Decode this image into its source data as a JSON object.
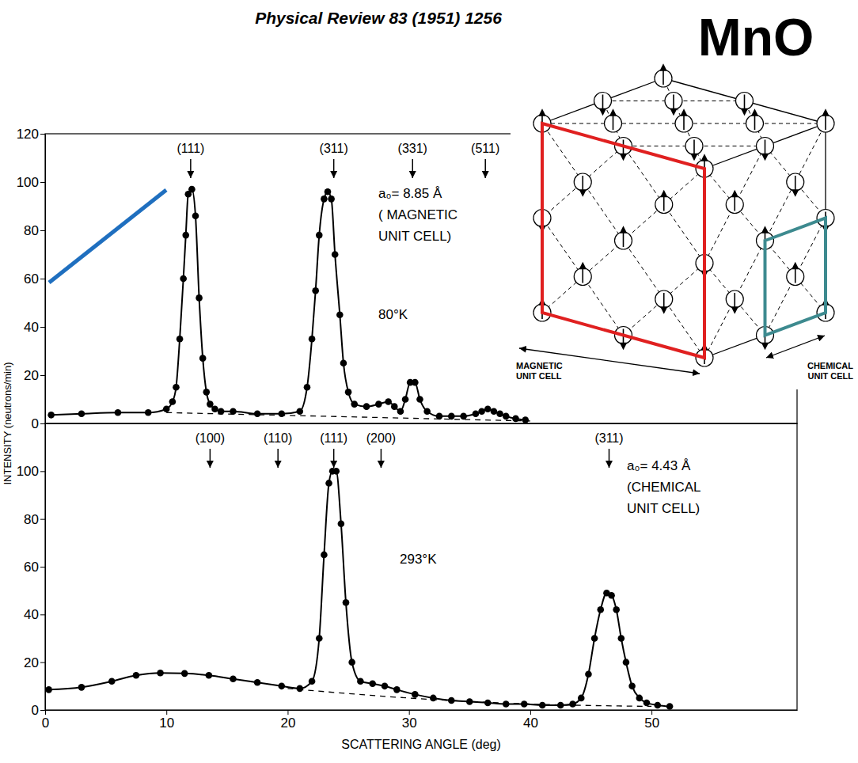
{
  "header": {
    "citation": "Physical Review 83 (1951) 1256",
    "compound": "MnO"
  },
  "chart_data": [
    {
      "type": "line",
      "y_label": "INTENSITY (neutrons/min)",
      "temperature": "80°K",
      "note_lines": [
        "a₀= 8.85 Å",
        "( MAGNETIC",
        "UNIT CELL)"
      ],
      "peaks": [
        {
          "label": "(111)",
          "x": 12
        },
        {
          "label": "(311)",
          "x": 23.8
        },
        {
          "label": "(331)",
          "x": 30.3
        },
        {
          "label": "(511)",
          "x": 36.3
        }
      ],
      "xlim": [
        0,
        62
      ],
      "ylim": [
        0,
        120
      ],
      "yticks": [
        0,
        20,
        40,
        60,
        80,
        100,
        120
      ],
      "tick_labels": "y",
      "series": [
        {
          "color": "#000000",
          "marker": "circle",
          "line_style": "solid",
          "x": [
            0.5,
            3,
            6,
            8.5,
            10,
            10.5,
            10.8,
            11.1,
            11.4,
            11.6,
            11.8,
            12.1,
            12.4,
            12.7,
            13,
            13.3,
            13.6,
            14,
            14.5,
            15.5,
            17.5,
            19.5,
            21,
            21.6,
            22,
            22.3,
            22.6,
            23,
            23.3,
            23.6,
            23.9,
            24.3,
            24.6,
            25,
            25.5,
            26.5,
            27.5,
            28.3,
            28.8,
            29.3,
            29.7,
            30.1,
            30.5,
            30.9,
            31.5,
            32.5,
            33.5,
            34.5,
            35.5,
            36,
            36.5,
            37,
            37.5,
            38,
            38.8,
            39.6
          ],
          "values": [
            3.5,
            4,
            4.5,
            4.5,
            6,
            9,
            15,
            35,
            60,
            78,
            95,
            97,
            86,
            52,
            27,
            13,
            8,
            6,
            5,
            5,
            4,
            4,
            5,
            15,
            35,
            55,
            78,
            93,
            96,
            93,
            70,
            45,
            25,
            13,
            8,
            7,
            8,
            9,
            7,
            5,
            10,
            17,
            17,
            10,
            5,
            3,
            3,
            3,
            4,
            5,
            6,
            5,
            4,
            3,
            2,
            1.5
          ]
        },
        {
          "color": "#000000",
          "marker": "none",
          "line_style": "dashed",
          "x": [
            10,
            40
          ],
          "values": [
            4.5,
            1
          ]
        }
      ]
    },
    {
      "type": "line",
      "x_label": "SCATTERING ANGLE (deg)",
      "temperature": "293°K",
      "note_lines": [
        "a₀= 4.43 Å",
        "(CHEMICAL",
        "UNIT CELL)"
      ],
      "peaks": [
        {
          "label": "(100)",
          "x": 13.6
        },
        {
          "label": "(110)",
          "x": 19.2
        },
        {
          "label": "(111)",
          "x": 23.8
        },
        {
          "label": "(200)",
          "x": 27.7
        },
        {
          "label": "(311)",
          "x": 46.5
        }
      ],
      "xlim": [
        0,
        62
      ],
      "ylim": [
        0,
        120
      ],
      "xticks": [
        0,
        10,
        20,
        30,
        40,
        50
      ],
      "yticks": [
        0,
        20,
        40,
        60,
        80,
        100
      ],
      "series": [
        {
          "color": "#000000",
          "marker": "circle",
          "line_style": "solid",
          "x": [
            0.3,
            3,
            5.5,
            7.5,
            9.5,
            11.5,
            13.5,
            15.5,
            17.5,
            19.5,
            21,
            22,
            22.6,
            23,
            23.4,
            23.7,
            24,
            24.4,
            24.8,
            25.3,
            26,
            27,
            28,
            29,
            30.5,
            32,
            33.5,
            35,
            36.5,
            38,
            39.5,
            41,
            42.5,
            43.5,
            44.2,
            44.8,
            45.3,
            45.8,
            46.3,
            46.7,
            47.1,
            47.5,
            47.9,
            48.4,
            49,
            49.6,
            50.5,
            51.5
          ],
          "values": [
            8.5,
            9.5,
            12,
            14.5,
            15.5,
            15.3,
            14.5,
            13,
            11.5,
            10,
            9,
            12,
            30,
            65,
            95,
            100,
            100,
            78,
            45,
            20,
            12,
            11,
            10,
            8.5,
            6.5,
            5,
            4,
            3.5,
            3,
            2.5,
            2.5,
            2,
            2,
            2.5,
            5,
            15,
            30,
            42,
            49,
            48,
            42,
            30,
            20,
            10,
            5,
            3,
            2,
            1.5
          ]
        },
        {
          "color": "#000000",
          "marker": "none",
          "line_style": "dashed",
          "x": [
            20,
            30,
            40,
            50
          ],
          "values": [
            9,
            5,
            2.5,
            1.5
          ]
        }
      ]
    }
  ],
  "diagram": {
    "labels": [
      "MAGNETIC UNIT CELL",
      "CHEMICAL UNIT CELL"
    ]
  }
}
